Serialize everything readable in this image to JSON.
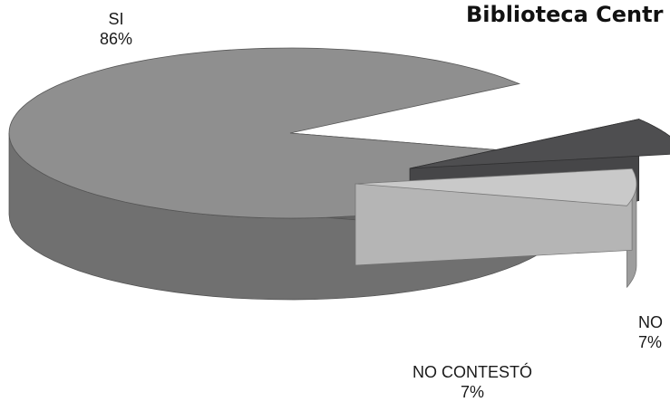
{
  "chart_data": {
    "type": "pie",
    "title": "Biblioteca Centr",
    "slices": [
      {
        "label": "SI",
        "value": 86,
        "value_label": "86%",
        "color": "#8f8f8f"
      },
      {
        "label": "NO",
        "value": 7,
        "value_label": "7%",
        "color": "#4e4e50"
      },
      {
        "label": "NO CONTESTÓ",
        "value": 7,
        "value_label": "7%",
        "color": "#c9c9c9"
      }
    ],
    "style": "3d-exploded",
    "legend": "none"
  }
}
